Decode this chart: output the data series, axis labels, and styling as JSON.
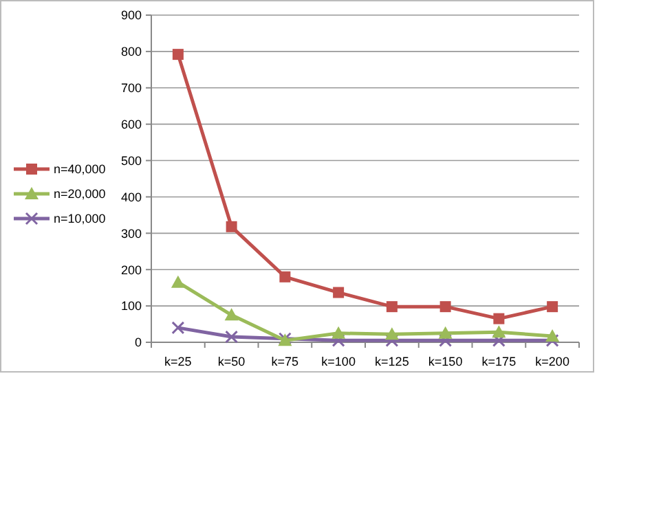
{
  "chart_data": {
    "type": "line",
    "categories": [
      "k=25",
      "k=50",
      "k=75",
      "k=100",
      "k=125",
      "k=150",
      "k=175",
      "k=200"
    ],
    "series": [
      {
        "name": "n=40,000",
        "color": "#c0504d",
        "marker": "square",
        "values": [
          792,
          318,
          180,
          137,
          98,
          98,
          65,
          98
        ]
      },
      {
        "name": "n=20,000",
        "color": "#9bbb59",
        "marker": "triangle",
        "values": [
          165,
          75,
          5,
          25,
          22,
          25,
          28,
          17
        ]
      },
      {
        "name": "n=10,000",
        "color": "#8064a2",
        "marker": "cross",
        "values": [
          40,
          15,
          10,
          5,
          5,
          5,
          5,
          5
        ]
      }
    ],
    "ylim": [
      0,
      900
    ],
    "yticks": [
      0,
      100,
      200,
      300,
      400,
      500,
      600,
      700,
      800,
      900
    ],
    "grid": "y",
    "legend": "left"
  }
}
